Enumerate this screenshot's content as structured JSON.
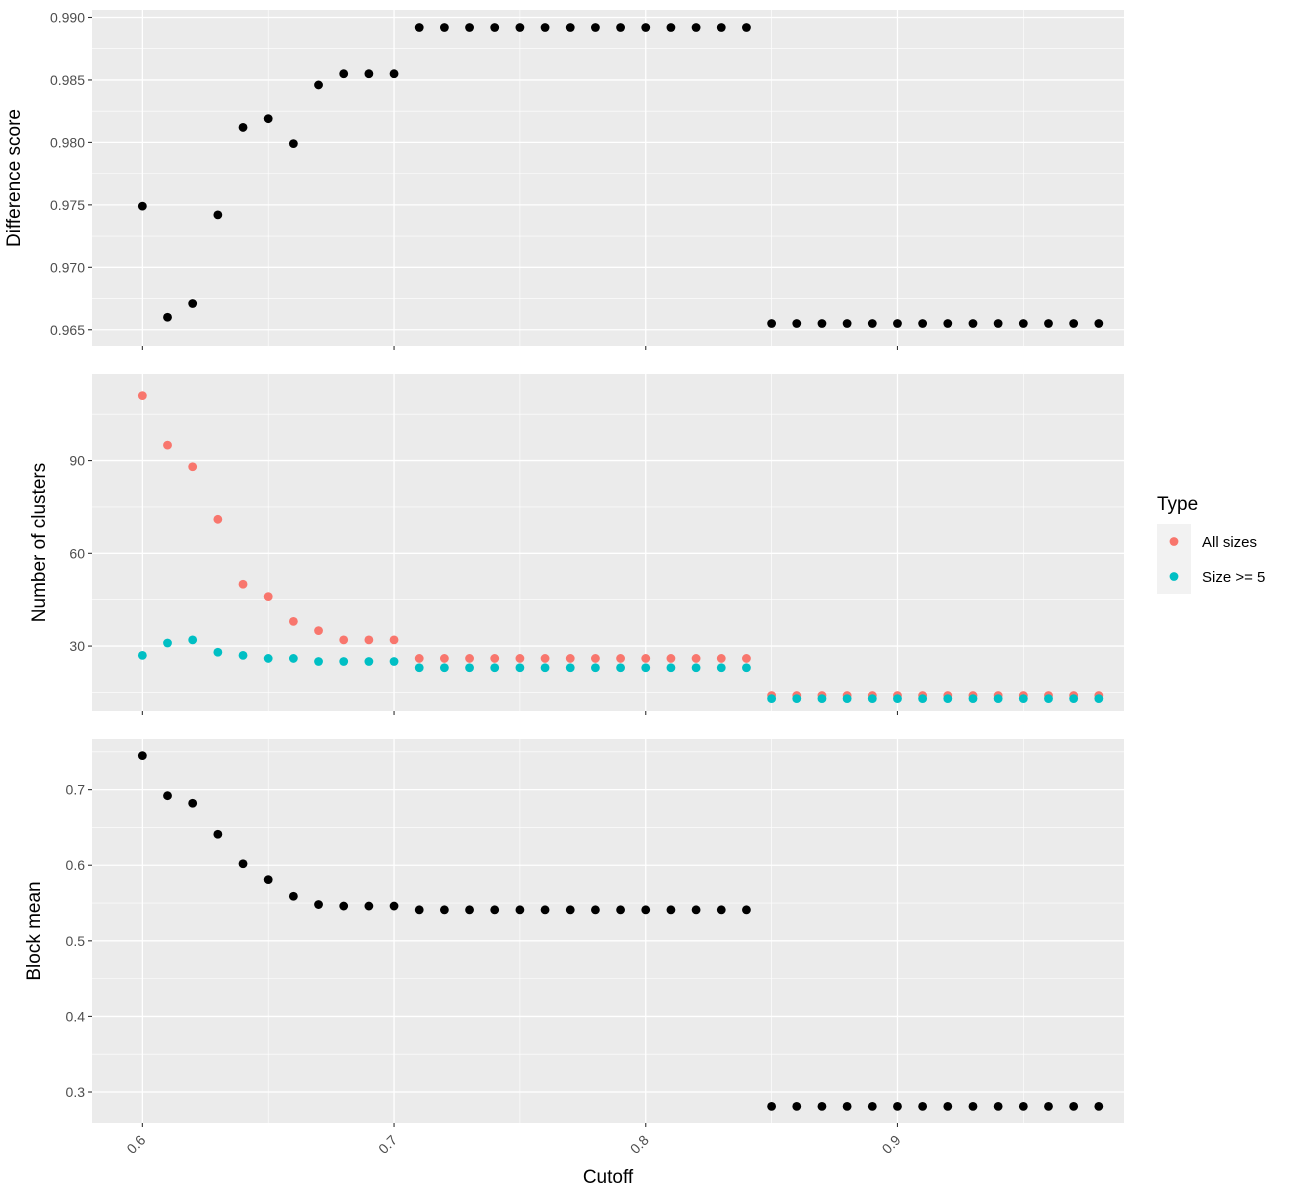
{
  "chart_data": {
    "type": "scatter",
    "xlabel": "Cutoff",
    "x_ticks": [
      0.6,
      0.7,
      0.8,
      0.9
    ],
    "x_tick_labels": [
      "0.6",
      "0.7",
      "0.8",
      "0.9"
    ],
    "xlim": [
      0.58,
      0.99
    ],
    "x": [
      0.6,
      0.61,
      0.62,
      0.63,
      0.64,
      0.65,
      0.66,
      0.67,
      0.68,
      0.69,
      0.7,
      0.71,
      0.72,
      0.73,
      0.74,
      0.75,
      0.76,
      0.77,
      0.78,
      0.79,
      0.8,
      0.81,
      0.82,
      0.83,
      0.84,
      0.85,
      0.86,
      0.87,
      0.88,
      0.89,
      0.9,
      0.91,
      0.92,
      0.93,
      0.94,
      0.95,
      0.96,
      0.97,
      0.98
    ],
    "grid": true,
    "legend": {
      "title": "Type",
      "placement": "right",
      "entries": [
        {
          "label": "All sizes",
          "color": "#F8766D"
        },
        {
          "label": "Size >= 5",
          "color": "#00BFC4"
        }
      ]
    },
    "panels": [
      {
        "ylabel": "Difference score",
        "ylim": [
          0.9637,
          0.9906
        ],
        "y_ticks": [
          0.965,
          0.97,
          0.975,
          0.98,
          0.985,
          0.99
        ],
        "y_tick_labels": [
          "0.965",
          "0.970",
          "0.975",
          "0.980",
          "0.985",
          "0.990"
        ],
        "series": [
          {
            "color": "#000000",
            "values": [
              0.9749,
              0.966,
              0.9671,
              0.9742,
              0.9812,
              0.9819,
              0.9799,
              0.9846,
              0.9855,
              0.9855,
              0.9855,
              0.9892,
              0.9892,
              0.9892,
              0.9892,
              0.9892,
              0.9892,
              0.9892,
              0.9892,
              0.9892,
              0.9892,
              0.9892,
              0.9892,
              0.9892,
              0.9892,
              0.9655,
              0.9655,
              0.9655,
              0.9655,
              0.9655,
              0.9655,
              0.9655,
              0.9655,
              0.9655,
              0.9655,
              0.9655,
              0.9655,
              0.9655,
              0.9655
            ]
          }
        ]
      },
      {
        "ylabel": "Number of clusters",
        "ylim": [
          9,
          118
        ],
        "y_ticks": [
          30,
          60,
          90
        ],
        "y_tick_labels": [
          "30",
          "60",
          "90"
        ],
        "series": [
          {
            "name": "All sizes",
            "color": "#F8766D",
            "values": [
              111,
              95,
              88,
              71,
              50,
              46,
              38,
              35,
              32,
              32,
              32,
              26,
              26,
              26,
              26,
              26,
              26,
              26,
              26,
              26,
              26,
              26,
              26,
              26,
              26,
              14,
              14,
              14,
              14,
              14,
              14,
              14,
              14,
              14,
              14,
              14,
              14,
              14,
              14
            ]
          },
          {
            "name": "Size >= 5",
            "color": "#00BFC4",
            "values": [
              27,
              31,
              32,
              28,
              27,
              26,
              26,
              25,
              25,
              25,
              25,
              23,
              23,
              23,
              23,
              23,
              23,
              23,
              23,
              23,
              23,
              23,
              23,
              23,
              23,
              13,
              13,
              13,
              13,
              13,
              13,
              13,
              13,
              13,
              13,
              13,
              13,
              13,
              13
            ]
          }
        ]
      },
      {
        "ylabel": "Block mean",
        "ylim": [
          0.259,
          0.767
        ],
        "y_ticks": [
          0.3,
          0.4,
          0.5,
          0.6,
          0.7
        ],
        "y_tick_labels": [
          "0.3",
          "0.4",
          "0.5",
          "0.6",
          "0.7"
        ],
        "series": [
          {
            "color": "#000000",
            "values": [
              0.745,
              0.692,
              0.682,
              0.641,
              0.602,
              0.581,
              0.559,
              0.548,
              0.546,
              0.546,
              0.546,
              0.541,
              0.541,
              0.541,
              0.541,
              0.541,
              0.541,
              0.541,
              0.541,
              0.541,
              0.541,
              0.541,
              0.541,
              0.541,
              0.541,
              0.281,
              0.281,
              0.281,
              0.281,
              0.281,
              0.281,
              0.281,
              0.281,
              0.281,
              0.281,
              0.281,
              0.281,
              0.281,
              0.281
            ]
          }
        ]
      }
    ]
  }
}
